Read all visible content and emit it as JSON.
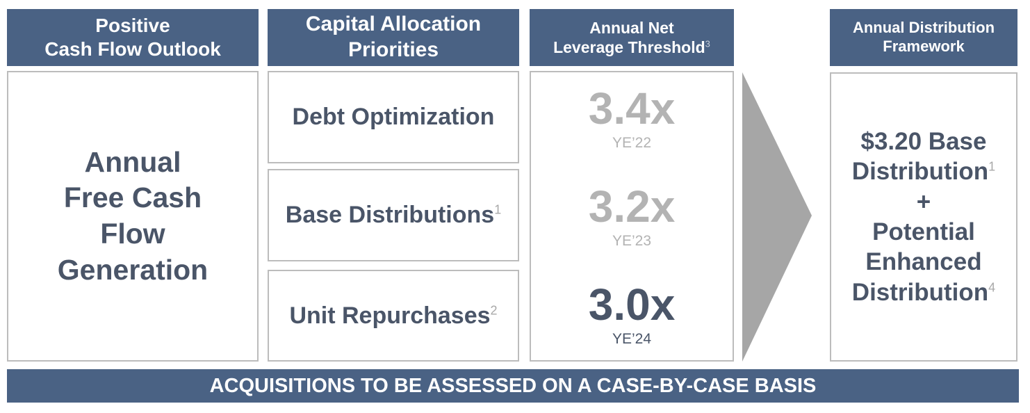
{
  "columns": {
    "cash_flow": {
      "header_line1": "Positive",
      "header_line2": "Cash Flow Outlook",
      "body_lines": [
        "Annual",
        "Free Cash",
        "Flow",
        "Generation"
      ]
    },
    "capital_allocation": {
      "header_line1": "Capital Allocation",
      "header_line2": "Priorities",
      "items": [
        {
          "label": "Debt Optimization",
          "footnote": ""
        },
        {
          "label": "Base Distributions",
          "footnote": "1"
        },
        {
          "label": "Unit Repurchases",
          "footnote": "2"
        }
      ]
    },
    "leverage": {
      "header_line1": "Annual Net",
      "header_line2": "Leverage Threshold",
      "header_footnote": "3",
      "thresholds": [
        {
          "value": "3.4x",
          "year": "YE’22"
        },
        {
          "value": "3.2x",
          "year": "YE’23"
        },
        {
          "value": "3.0x",
          "year": "YE’24"
        }
      ]
    },
    "distribution": {
      "header_line1": "Annual Distribution",
      "header_line2": "Framework",
      "line1": "$3.20 Base",
      "line2": "Distribution",
      "line2_footnote": "1",
      "plus": "+",
      "line3": "Potential",
      "line4": "Enhanced",
      "line5": "Distribution",
      "line5_footnote": "4"
    }
  },
  "footer": "ACQUISITIONS TO BE ASSESSED ON A CASE-BY-CASE BASIS",
  "colors": {
    "header_bg": "#4a6284",
    "body_text": "#4a5568",
    "muted_text": "#b3b3b3",
    "arrow": "#a6a6a6",
    "border": "#bcbcbc"
  }
}
